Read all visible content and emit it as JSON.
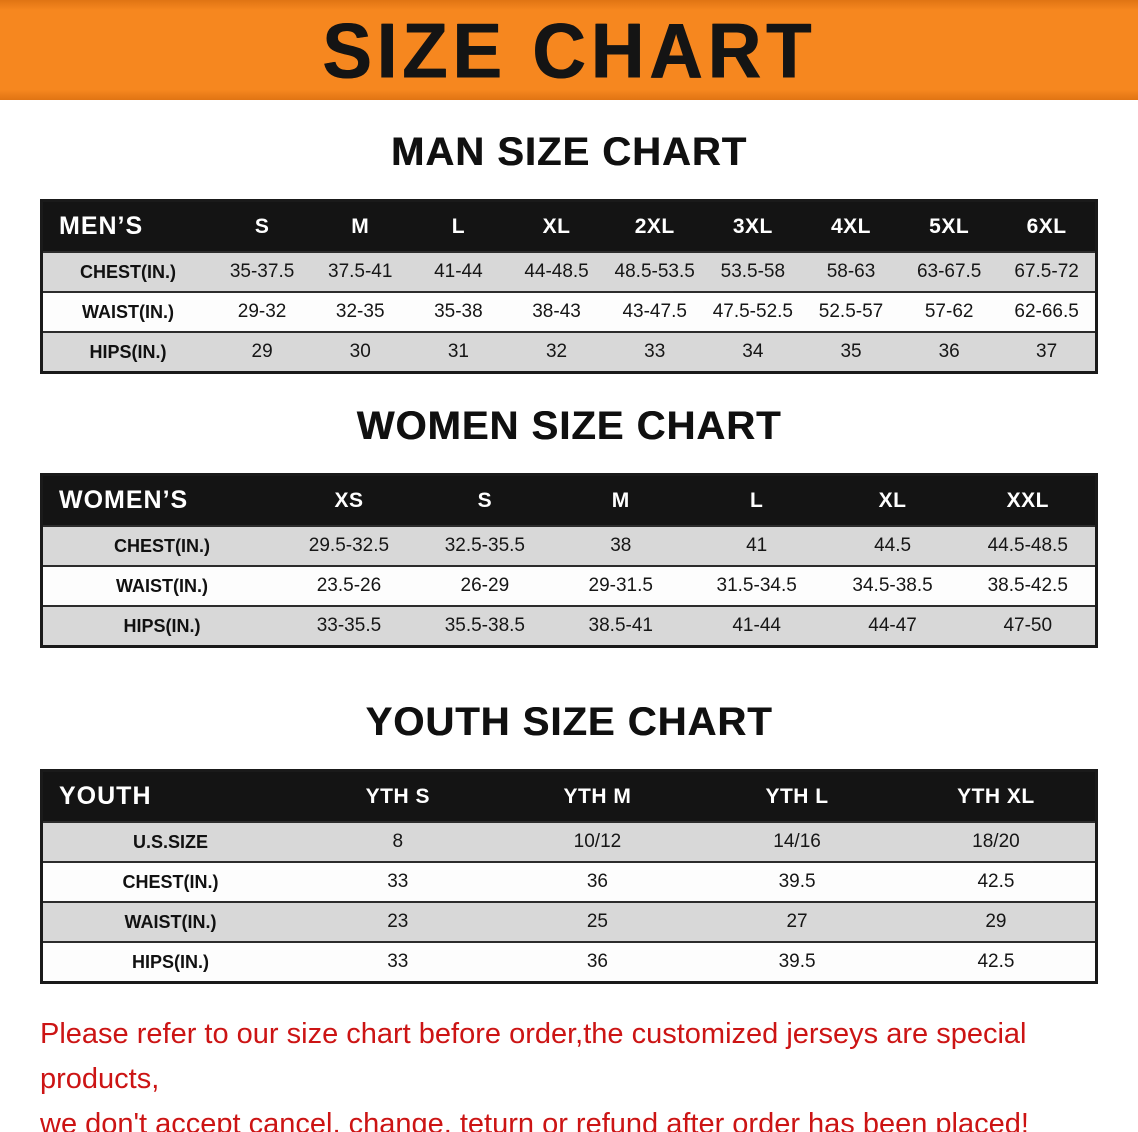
{
  "banner": {
    "title": "SIZE CHART",
    "bg_color": "#f6871f",
    "text_color": "#141414"
  },
  "colors": {
    "table_header_bg": "#141414",
    "table_header_text": "#ffffff",
    "row_alt_bg": "#d8d8d8",
    "note_text": "#cc1414"
  },
  "sections": [
    {
      "heading": "MAN SIZE CHART",
      "table": {
        "header": [
          "MEN’S",
          "S",
          "M",
          "L",
          "XL",
          "2XL",
          "3XL",
          "4XL",
          "5XL",
          "6XL"
        ],
        "rows": [
          [
            "CHEST(IN.)",
            "35-37.5",
            "37.5-41",
            "41-44",
            "44-48.5",
            "48.5-53.5",
            "53.5-58",
            "58-63",
            "63-67.5",
            "67.5-72"
          ],
          [
            "WAIST(IN.)",
            "29-32",
            "32-35",
            "35-38",
            "38-43",
            "43-47.5",
            "47.5-52.5",
            "52.5-57",
            "57-62",
            "62-66.5"
          ],
          [
            "HIPS(IN.)",
            "29",
            "30",
            "31",
            "32",
            "33",
            "34",
            "35",
            "36",
            "37"
          ]
        ]
      }
    },
    {
      "heading": "WOMEN SIZE CHART",
      "table": {
        "header": [
          "WOMEN’S",
          "XS",
          "S",
          "M",
          "L",
          "XL",
          "XXL"
        ],
        "rows": [
          [
            "CHEST(IN.)",
            "29.5-32.5",
            "32.5-35.5",
            "38",
            "41",
            "44.5",
            "44.5-48.5"
          ],
          [
            "WAIST(IN.)",
            "23.5-26",
            "26-29",
            "29-31.5",
            "31.5-34.5",
            "34.5-38.5",
            "38.5-42.5"
          ],
          [
            "HIPS(IN.)",
            "33-35.5",
            "35.5-38.5",
            "38.5-41",
            "41-44",
            "44-47",
            "47-50"
          ]
        ]
      }
    },
    {
      "heading": "YOUTH SIZE CHART",
      "table": {
        "header": [
          "YOUTH",
          "YTH S",
          "YTH M",
          "YTH L",
          "YTH XL"
        ],
        "rows": [
          [
            "U.S.SIZE",
            "8",
            "10/12",
            "14/16",
            "18/20"
          ],
          [
            "CHEST(IN.)",
            "33",
            "36",
            "39.5",
            "42.5"
          ],
          [
            "WAIST(IN.)",
            "23",
            "25",
            "27",
            "29"
          ],
          [
            "HIPS(IN.)",
            "33",
            "36",
            "39.5",
            "42.5"
          ]
        ]
      }
    }
  ],
  "note": {
    "line1": "Please refer to our size chart before order,the customized jerseys are special products,",
    "line2": "we don't accept cancel, change, teturn or refund after order has been placed!"
  }
}
